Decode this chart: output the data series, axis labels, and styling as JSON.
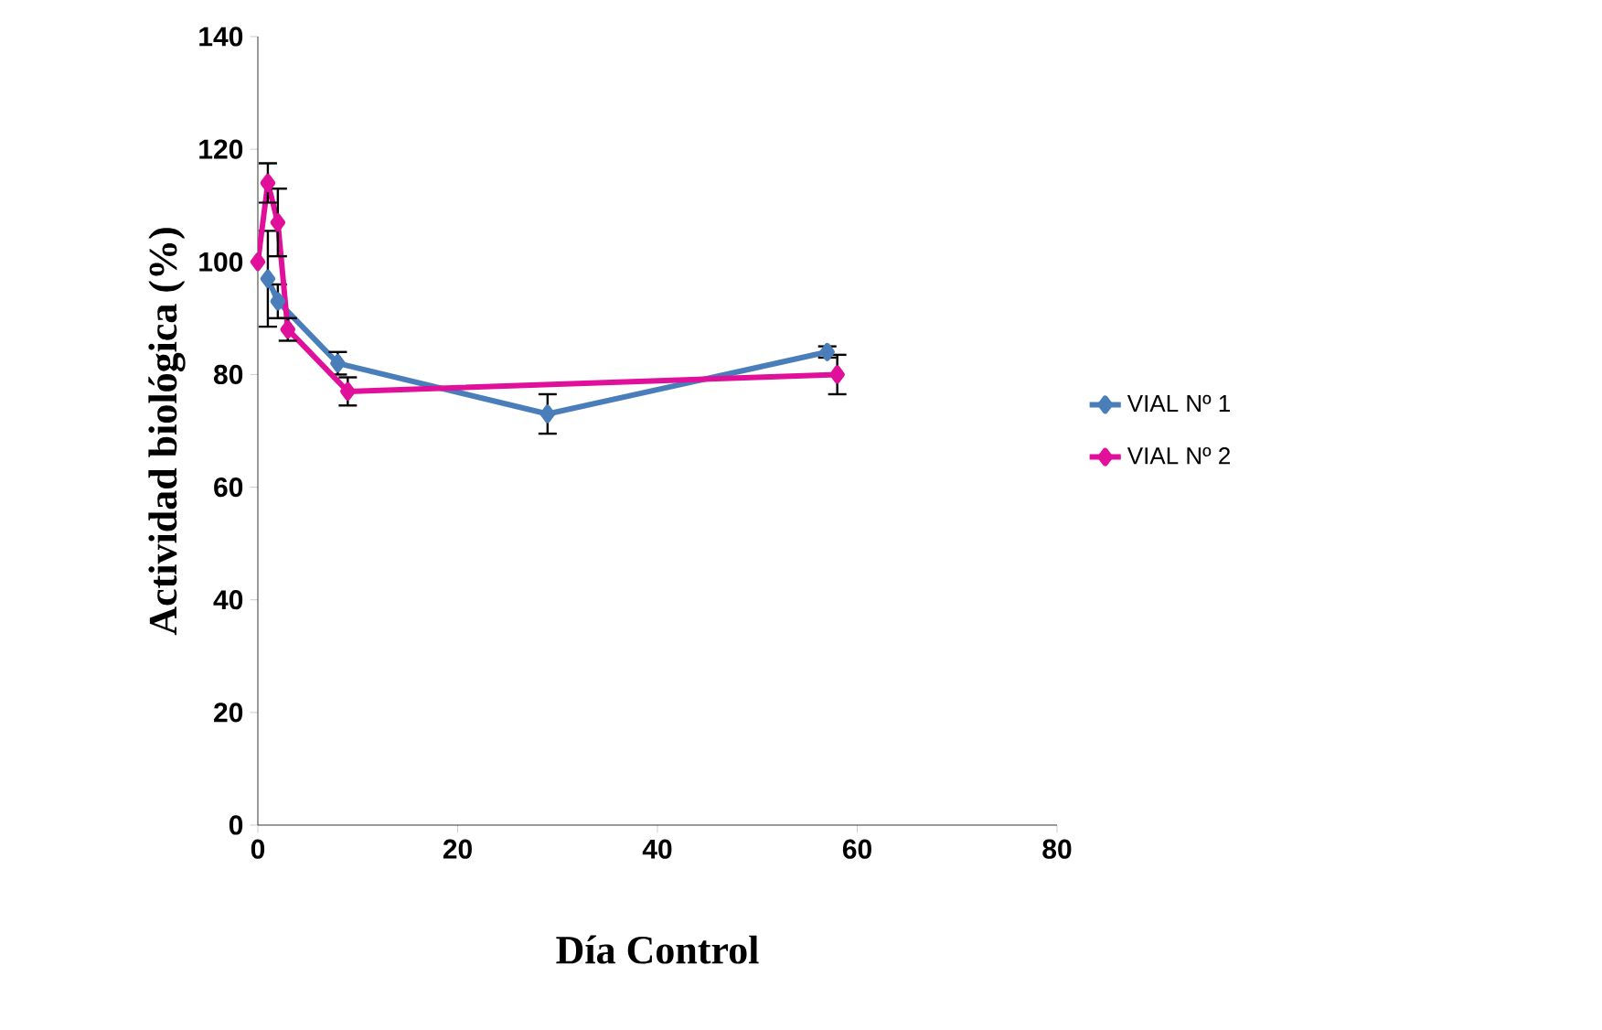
{
  "chart_data": {
    "type": "line",
    "xlabel": "Día Control",
    "ylabel": "Actividad biológica (%)",
    "xlim": [
      0,
      80
    ],
    "xticks": [
      0,
      20,
      40,
      60,
      80
    ],
    "ylim": [
      0,
      140
    ],
    "yticks": [
      0,
      20,
      40,
      60,
      80,
      100,
      120,
      140
    ],
    "grid": false,
    "legend": "right",
    "marker": "diamond",
    "line_style": "solid",
    "series": [
      {
        "name": "VIAL Nº 1",
        "color": "#4a7ebb",
        "x": [
          1,
          2,
          8,
          29,
          57
        ],
        "values": [
          97,
          93,
          82,
          73,
          84
        ],
        "errors": [
          8.5,
          3,
          2,
          3.5,
          1
        ]
      },
      {
        "name": "VIAL Nº 2",
        "color": "#e0109a",
        "x": [
          0,
          1,
          2,
          3,
          9,
          58
        ],
        "values": [
          100,
          114,
          107,
          88,
          77,
          80
        ],
        "errors": [
          null,
          3.5,
          6,
          2,
          2.5,
          3.5
        ]
      }
    ]
  }
}
